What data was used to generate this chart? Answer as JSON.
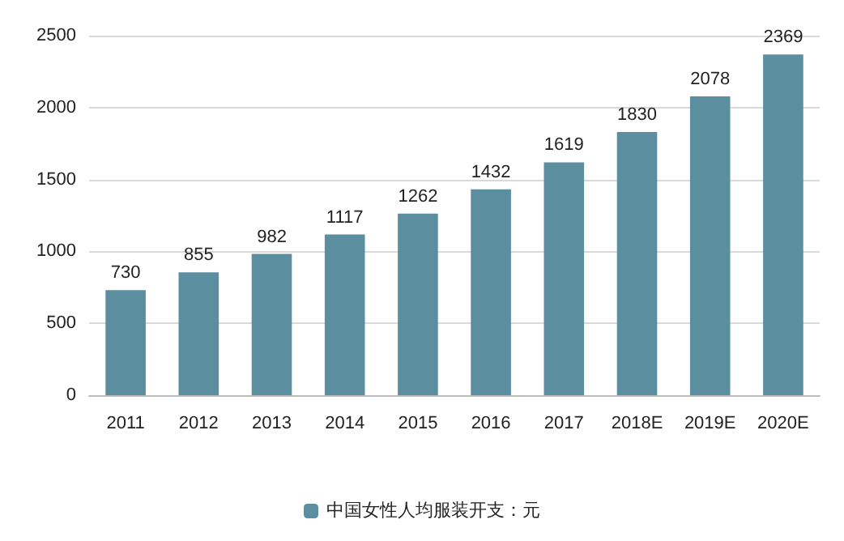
{
  "chart_data": {
    "type": "bar",
    "categories": [
      "2011",
      "2012",
      "2013",
      "2014",
      "2015",
      "2016",
      "2017",
      "2018E",
      "2019E",
      "2020E"
    ],
    "series": [
      {
        "name": "中国女性人均服装开支：元",
        "color": "#5b8fa0",
        "values": [
          730,
          855,
          982,
          1117,
          1262,
          1432,
          1619,
          1830,
          2078,
          2369
        ]
      }
    ],
    "ylim": [
      0,
      2500
    ],
    "yticks": [
      0,
      500,
      1000,
      1500,
      2000,
      2500
    ],
    "grid": "y",
    "legend": "bottom",
    "data_labels": true
  }
}
